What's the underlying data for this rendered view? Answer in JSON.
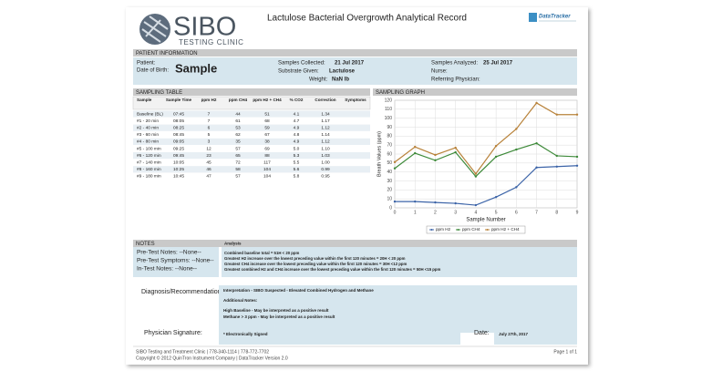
{
  "header": {
    "logo_name": "SIBO",
    "logo_sub": "TESTING CLINIC",
    "title": "Lactulose Bacterial Overgrowth Analytical Record",
    "brand": "DataTracker"
  },
  "patient": {
    "section": "PATIENT INFORMATION",
    "patient_label": "Patient:",
    "dob_label": "Date of Birth:",
    "dob": "Sample",
    "collected_label": "Samples Collected:",
    "collected": "21 Jul 2017",
    "substrate_label": "Substrate Given:",
    "substrate": "Lactulose",
    "weight_label": "Weight:",
    "weight": "NaN lb",
    "analyzed_label": "Samples Analyzed:",
    "analyzed": "25 Jul 2017",
    "nurse_label": "Nurse:",
    "physician_label": "Referring Physician:"
  },
  "sampling_table": {
    "section": "SAMPLING TABLE",
    "columns": [
      "Sample",
      "Sample Time",
      "ppm H2",
      "ppm CH4",
      "ppm H2 + CH4",
      "% CO2",
      "Correction",
      "Symptoms"
    ],
    "rows": [
      [
        "Baseline (BL)",
        "07:45",
        "7",
        "44",
        "51",
        "4.1",
        "1.34"
      ],
      [
        "#1 - 20 min",
        "08:05",
        "7",
        "61",
        "68",
        "4.7",
        "1.17"
      ],
      [
        "#2 - 40 min",
        "08:25",
        "6",
        "53",
        "59",
        "4.9",
        "1.12"
      ],
      [
        "#3 - 60 min",
        "08:45",
        "5",
        "62",
        "67",
        "4.8",
        "1.14"
      ],
      [
        "#4 - 80 min",
        "09:05",
        "3",
        "35",
        "38",
        "4.9",
        "1.12"
      ],
      [
        "#5 - 100 min",
        "09:25",
        "12",
        "57",
        "69",
        "5.0",
        "1.10"
      ],
      [
        "#6 - 120 min",
        "09:45",
        "23",
        "65",
        "88",
        "5.3",
        "1.03"
      ],
      [
        "#7 - 140 min",
        "10:05",
        "45",
        "72",
        "117",
        "5.5",
        "1.00"
      ],
      [
        "#8 - 160 min",
        "10:25",
        "46",
        "58",
        "104",
        "5.6",
        "0.99"
      ],
      [
        "#9 - 180 min",
        "10:45",
        "47",
        "57",
        "104",
        "5.8",
        "0.95"
      ]
    ]
  },
  "graph_section": "SAMPLING GRAPH",
  "chart_data": {
    "type": "line",
    "x_label": "Sample Number",
    "y_label": "Breath Values (ppm)",
    "x": [
      0,
      1,
      2,
      3,
      4,
      5,
      6,
      7,
      8,
      9
    ],
    "xlim": [
      0,
      9
    ],
    "xticks": [
      0,
      1,
      2,
      3,
      4,
      5,
      6,
      7,
      8,
      9
    ],
    "ylim": [
      0,
      120
    ],
    "yticks": [
      0,
      10,
      20,
      30,
      40,
      50,
      60,
      70,
      80,
      90,
      100,
      110,
      120
    ],
    "grid": true,
    "series": [
      {
        "name": "ppm H2",
        "color": "#3c64a8",
        "values": [
          7,
          7,
          6,
          5,
          3,
          12,
          23,
          45,
          46,
          47
        ]
      },
      {
        "name": "ppm CH4",
        "color": "#3e8a3a",
        "values": [
          44,
          61,
          53,
          62,
          35,
          57,
          65,
          72,
          58,
          57
        ]
      },
      {
        "name": "ppm H2 + CH4",
        "color": "#b8823a",
        "values": [
          51,
          68,
          59,
          67,
          38,
          69,
          88,
          117,
          104,
          104
        ]
      }
    ]
  },
  "notes": {
    "section": "NOTES",
    "items": [
      "Pre-Test Notes: --None--",
      "Pre-Test Symptoms: --None--",
      "In-Test Notes: --None--"
    ],
    "analysis_title": "Analysis",
    "analysis": [
      "Combined baseline total = 51H < 20 ppm",
      "Greatest H2 increase over the lowest preceding value within the first 120 minutes = 20H < 20 ppm",
      "Greatest CH4 increase over the lowest preceding value within the first 120 minutes = 30H <12 ppm",
      "Greatest combined H2 and CH4 increase over the lowest preceding value within the first 120 minutes = 50H <15 ppm"
    ]
  },
  "diagnosis": {
    "label": "Diagnosis/Recommendations:",
    "interpretation": "Interpretation - SIBO Suspected -  Elevated Combined Hydrogen and Methane",
    "additional_label": "Additional Notes:",
    "results": [
      "High Baseline - May be interpreted as a positive result",
      "Methane > 3 ppm - May be interpreted as a positive result"
    ]
  },
  "signature": {
    "label": "Physician Signature:",
    "value": "* Electronically Signed",
    "date_label": "Date:",
    "date": "July 27th, 2017"
  },
  "footer": {
    "lines": [
      "SIBO Testing and Treatment Clinic   |   778-340-1114   |   778-772-7702",
      "Copyright © 2012 QuinTron Instrument Company  |  DataTracker Version 2.0"
    ],
    "page": "Page 1 of 1"
  }
}
